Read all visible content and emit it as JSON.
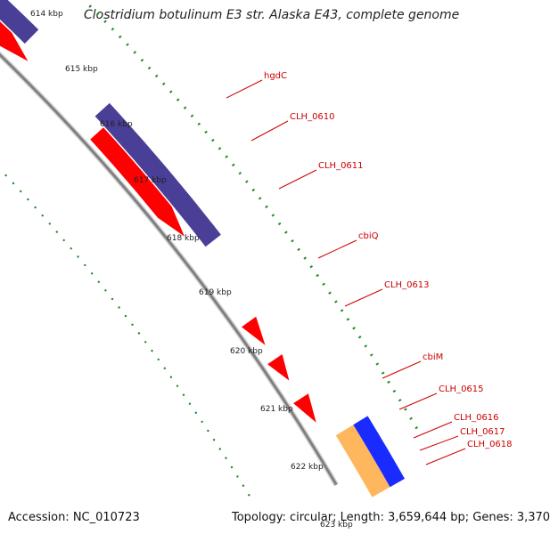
{
  "title": "Clostridium botulinum E3 str. Alaska E43, complete genome",
  "footer": {
    "accession": "Accession: NC_010723",
    "topology": "Topology: circular; Length: 3,659,644 bp; Genes: 3,370"
  },
  "ticks": [
    "614 kbp",
    "615 kbp",
    "616 kbp",
    "617 kbp",
    "618 kbp",
    "619 kbp",
    "620 kbp",
    "621 kbp",
    "622 kbp",
    "623 kbp"
  ],
  "gene_labels": [
    "hgdC",
    "CLH_0610",
    "CLH_0611",
    "cbiQ",
    "CLH_0613",
    "cbiM",
    "CLH_0615",
    "CLH_0616",
    "CLH_0617",
    "CLH_0618"
  ],
  "colors": {
    "cds": "#ff0000",
    "steelblue": "#4f87bd",
    "purple": "#7b68dd",
    "grey": "#c8c8c8",
    "olive": "#c2b86b",
    "indigo": "#4a3f96",
    "backbone": "#808080",
    "gc_dots": "#228b22",
    "label": "#cc0000"
  }
}
